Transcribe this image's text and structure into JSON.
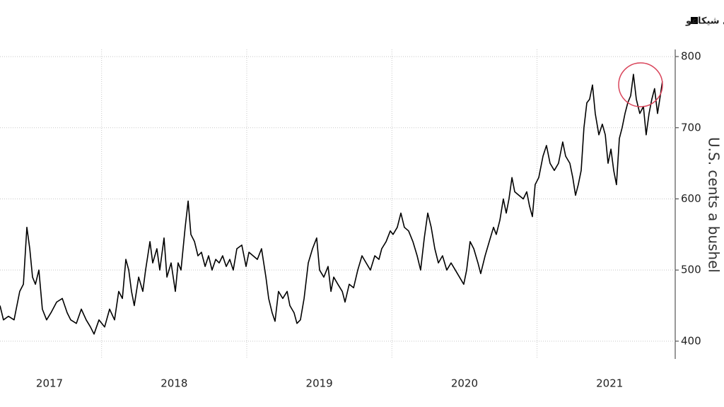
{
  "chart_data": {
    "type": "line",
    "y_label": "U.S. cents a bushel",
    "series": [
      {
        "name": "عقود القمح الآجلة في شيكاغو",
        "color": "#000000",
        "values": [
          450,
          430,
          435,
          430,
          470,
          480,
          560,
          530,
          490,
          480,
          500,
          445,
          430,
          440,
          455,
          460,
          440,
          430,
          425,
          445,
          430,
          420,
          410,
          430,
          420,
          445,
          430,
          470,
          460,
          515,
          500,
          470,
          450,
          490,
          470,
          500,
          540,
          510,
          530,
          500,
          545,
          490,
          510,
          470,
          510,
          500,
          560,
          597,
          550,
          540,
          520,
          525,
          505,
          520,
          500,
          515,
          510,
          520,
          505,
          515,
          500,
          530,
          535,
          505,
          525,
          520,
          515,
          530,
          490,
          460,
          440,
          428,
          470,
          460,
          470,
          450,
          440,
          425,
          430,
          460,
          510,
          530,
          545,
          500,
          490,
          505,
          470,
          490,
          480,
          470,
          455,
          480,
          475,
          500,
          520,
          510,
          500,
          520,
          515,
          530,
          540,
          555,
          550,
          560,
          580,
          560,
          555,
          540,
          520,
          500,
          545,
          580,
          560,
          530,
          510,
          520,
          500,
          510,
          500,
          490,
          480,
          500,
          540,
          530,
          510,
          495,
          520,
          540,
          560,
          550,
          570,
          600,
          580,
          600,
          630,
          610,
          605,
          600,
          610,
          590,
          575,
          620,
          630,
          660,
          675,
          650,
          640,
          650,
          680,
          660,
          650,
          630,
          605,
          620,
          640,
          700,
          735,
          740,
          760,
          720,
          690,
          705,
          690,
          650,
          670,
          640,
          620,
          685,
          700,
          720,
          735,
          745,
          775,
          740,
          720,
          730,
          690,
          720,
          740,
          755,
          720,
          745,
          765
        ]
      }
    ],
    "x": [
      2016.8,
      2016.824,
      2016.858,
      2016.897,
      2016.936,
      2016.961,
      2016.985,
      2017.005,
      2017.024,
      2017.044,
      2017.068,
      2017.092,
      2017.121,
      2017.151,
      2017.19,
      2017.229,
      2017.263,
      2017.287,
      2017.326,
      2017.36,
      2017.394,
      2017.423,
      2017.448,
      2017.482,
      2017.521,
      2017.555,
      2017.589,
      2017.618,
      2017.643,
      2017.667,
      2017.687,
      2017.706,
      2017.725,
      2017.755,
      2017.784,
      2017.803,
      2017.833,
      2017.852,
      2017.881,
      2017.901,
      2017.93,
      2017.95,
      2017.979,
      2018.008,
      2018.027,
      2018.047,
      2018.076,
      2018.096,
      2018.115,
      2018.14,
      2018.164,
      2018.188,
      2018.213,
      2018.237,
      2018.261,
      2018.286,
      2018.31,
      2018.334,
      2018.359,
      2018.383,
      2018.407,
      2018.432,
      2018.466,
      2018.495,
      2018.515,
      2018.544,
      2018.573,
      2018.602,
      2018.632,
      2018.651,
      2018.675,
      2018.695,
      2018.719,
      2018.748,
      2018.778,
      2018.797,
      2018.826,
      2018.846,
      2018.87,
      2018.895,
      2018.924,
      2018.953,
      2018.982,
      2019.002,
      2019.031,
      2019.06,
      2019.08,
      2019.099,
      2019.128,
      2019.158,
      2019.177,
      2019.206,
      2019.236,
      2019.265,
      2019.294,
      2019.323,
      2019.352,
      2019.382,
      2019.411,
      2019.43,
      2019.46,
      2019.489,
      2019.508,
      2019.537,
      2019.562,
      2019.586,
      2019.615,
      2019.645,
      2019.674,
      2019.698,
      2019.723,
      2019.747,
      2019.771,
      2019.796,
      2019.82,
      2019.849,
      2019.878,
      2019.908,
      2019.937,
      2019.966,
      2019.995,
      2020.015,
      2020.039,
      2020.064,
      2020.093,
      2020.112,
      2020.142,
      2020.171,
      2020.2,
      2020.219,
      2020.244,
      2020.268,
      2020.288,
      2020.307,
      2020.327,
      2020.346,
      2020.375,
      2020.405,
      2020.429,
      2020.448,
      2020.468,
      2020.487,
      2020.512,
      2020.541,
      2020.565,
      2020.59,
      2020.619,
      2020.648,
      2020.677,
      2020.697,
      2020.726,
      2020.746,
      2020.765,
      2020.784,
      2020.804,
      2020.823,
      2020.843,
      2020.862,
      2020.882,
      2020.901,
      2020.926,
      2020.95,
      2020.97,
      2020.989,
      2021.009,
      2021.028,
      2021.047,
      2021.067,
      2021.086,
      2021.106,
      2021.125,
      2021.145,
      2021.164,
      2021.184,
      2021.208,
      2021.233,
      2021.252,
      2021.272,
      2021.291,
      2021.31,
      2021.33,
      2021.349,
      2021.364
    ],
    "xlim": [
      2016.8,
      2021.452
    ],
    "xticks": [
      2017,
      2018,
      2019,
      2020,
      2021
    ],
    "ylim": [
      380,
      810
    ],
    "yticks": [
      400,
      500,
      600,
      700,
      800
    ],
    "grid": true
  }
}
